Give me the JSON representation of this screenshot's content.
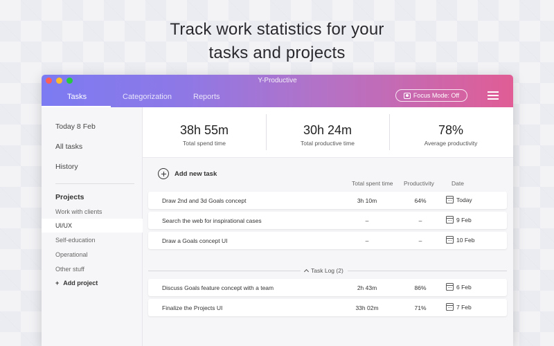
{
  "headline": {
    "line1": "Track work statistics for your",
    "line2": "tasks and projects"
  },
  "window": {
    "title": "Y-Productive",
    "nav": {
      "tabs": [
        "Tasks",
        "Categorization",
        "Reports"
      ],
      "active": "Tasks"
    },
    "focus_mode_label": "Focus Mode: Off"
  },
  "sidebar": {
    "top_items": [
      "Today 8 Feb",
      "All tasks",
      "History"
    ],
    "projects_heading": "Projects",
    "projects": [
      "Work with clients",
      "UI/UX",
      "Self-education",
      "Operational",
      "Other stuff"
    ],
    "active_project": "UI/UX",
    "add_project_label": "Add project"
  },
  "stats": [
    {
      "value": "38h 55m",
      "label": "Total spend time"
    },
    {
      "value": "30h 24m",
      "label": "Total productive time"
    },
    {
      "value": "78%",
      "label": "Average productivity"
    }
  ],
  "tasks": {
    "add_label": "Add new task",
    "columns": {
      "time": "Total spent time",
      "productivity": "Productivity",
      "date": "Date"
    },
    "active": [
      {
        "name": "Draw 2nd and 3d Goals concept",
        "time": "3h 10m",
        "productivity": "64%",
        "date": "Today"
      },
      {
        "name": "Search the web for inspirational cases",
        "time": "–",
        "productivity": "–",
        "date": "9 Feb"
      },
      {
        "name": "Draw a Goals concept UI",
        "time": "–",
        "productivity": "–",
        "date": "10 Feb"
      }
    ],
    "log_label": "Task Log (2)",
    "log": [
      {
        "name": "Discuss Goals feature concept with a team",
        "time": "2h 43m",
        "productivity": "86%",
        "date": "6 Feb"
      },
      {
        "name": "Finalize the Projects UI",
        "time": "33h 02m",
        "productivity": "71%",
        "date": "7 Feb"
      }
    ]
  },
  "colors": {
    "gradient_start": "#7c7bf2",
    "gradient_end": "#e05d95"
  }
}
